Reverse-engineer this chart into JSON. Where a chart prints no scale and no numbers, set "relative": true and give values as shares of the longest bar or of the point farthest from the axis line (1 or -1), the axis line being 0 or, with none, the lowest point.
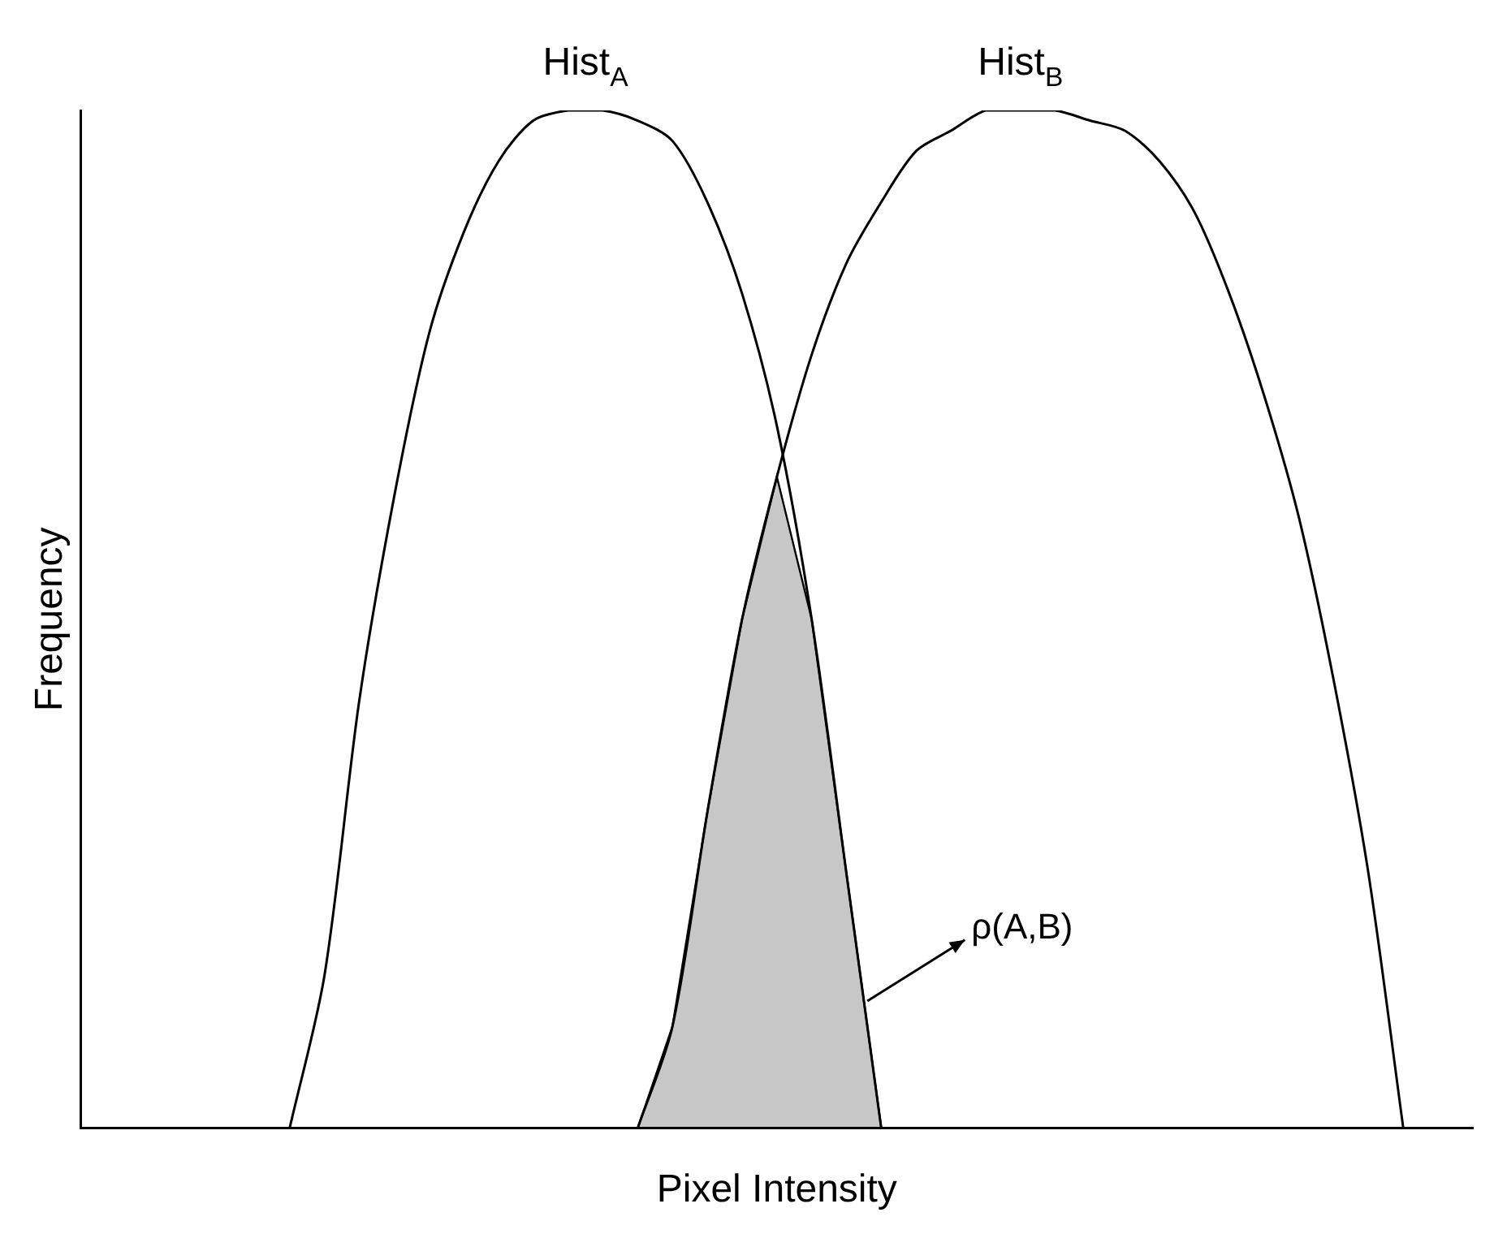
{
  "chart_data": {
    "type": "line",
    "relative": true,
    "xlabel": "Pixel Intensity",
    "ylabel": "Frequency",
    "grid": false,
    "legend": false,
    "marker": "none",
    "line_style": "solid",
    "categories": [
      null,
      null,
      null,
      null,
      null,
      null,
      null,
      null,
      null,
      null,
      null,
      null,
      null,
      null,
      null,
      null,
      null,
      null,
      null,
      null,
      null,
      null,
      null,
      null,
      null,
      null,
      null,
      null,
      null,
      null,
      null,
      null,
      null,
      null,
      null,
      null,
      null,
      null,
      null,
      null,
      null
    ],
    "series": [
      {
        "name": "Hist$_{A}$",
        "color": "#000000",
        "values": [
          null,
          null,
          null,
          null,
          null,
          null,
          0,
          0.15,
          0.42,
          0.62,
          0.78,
          0.88,
          0.95,
          0.99,
          1.0,
          1.0,
          0.99,
          0.97,
          0.91,
          0.82,
          0.69,
          0.5,
          0.25,
          0,
          null,
          null,
          null,
          null,
          null,
          null,
          null,
          null,
          null,
          null,
          null,
          null,
          null,
          null,
          null,
          null,
          null
        ]
      },
      {
        "name": "Hist$_{B}$",
        "color": "#000000",
        "values": [
          null,
          null,
          null,
          null,
          null,
          null,
          null,
          null,
          null,
          null,
          null,
          null,
          null,
          null,
          null,
          null,
          0,
          0.1,
          0.31,
          0.5,
          0.64,
          0.76,
          0.85,
          0.91,
          0.96,
          0.98,
          1.0,
          1.0,
          1.0,
          0.99,
          0.98,
          0.95,
          0.9,
          0.82,
          0.72,
          0.6,
          0.44,
          0.25,
          0,
          null,
          null
        ]
      },
      {
        "type": "area",
        "color": "#000000",
        "values": [
          null,
          null,
          null,
          null,
          null,
          null,
          null,
          null,
          null,
          null,
          null,
          null,
          null,
          null,
          null,
          null,
          0,
          0.1,
          0.31,
          0.5,
          0.64,
          0.5,
          0.25,
          0,
          null,
          null,
          null,
          null,
          null,
          null,
          null,
          null,
          null,
          null,
          null,
          null,
          null,
          null,
          null,
          null,
          null
        ]
      }
    ],
    "annotations": [
      "ρ(A,B)"
    ]
  }
}
